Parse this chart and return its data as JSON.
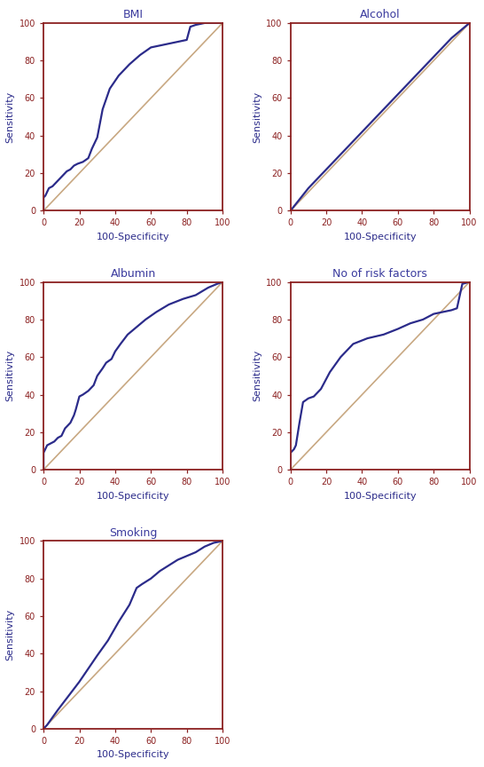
{
  "title_color": "#3b3b9e",
  "curve_color": "#2b2b8a",
  "diag_color": "#c8a882",
  "border_color": "#8b2020",
  "tick_color": "#8b2020",
  "label_color": "#2b2b8a",
  "background": "#ffffff",
  "plots": [
    {
      "title": "BMI",
      "roc_x": [
        0,
        0,
        1,
        2,
        3,
        5,
        7,
        9,
        11,
        13,
        15,
        17,
        19,
        22,
        25,
        27,
        29,
        30,
        31,
        33,
        37,
        42,
        48,
        54,
        60,
        65,
        70,
        75,
        80,
        82,
        85,
        90,
        95,
        100
      ],
      "roc_y": [
        0,
        7,
        8,
        10,
        12,
        13,
        15,
        17,
        19,
        21,
        22,
        24,
        25,
        26,
        28,
        33,
        37,
        39,
        44,
        54,
        65,
        72,
        78,
        83,
        87,
        88,
        89,
        90,
        91,
        98,
        99,
        100,
        100,
        100
      ]
    },
    {
      "title": "Alcohol",
      "roc_x": [
        0,
        5,
        10,
        20,
        30,
        40,
        50,
        60,
        70,
        80,
        90,
        100
      ],
      "roc_y": [
        0,
        6,
        12,
        22,
        32,
        42,
        52,
        62,
        72,
        82,
        92,
        100
      ]
    },
    {
      "title": "Albumin",
      "roc_x": [
        0,
        0,
        2,
        4,
        6,
        8,
        10,
        12,
        15,
        17,
        18,
        20,
        22,
        25,
        28,
        30,
        33,
        35,
        38,
        40,
        43,
        47,
        52,
        57,
        63,
        70,
        78,
        85,
        92,
        97,
        100
      ],
      "roc_y": [
        0,
        9,
        13,
        14,
        15,
        17,
        18,
        22,
        25,
        29,
        32,
        39,
        40,
        42,
        45,
        50,
        54,
        57,
        59,
        63,
        67,
        72,
        76,
        80,
        84,
        88,
        91,
        93,
        97,
        99,
        100
      ]
    },
    {
      "title": "No of risk factors",
      "roc_x": [
        0,
        0,
        1,
        2,
        3,
        5,
        7,
        10,
        13,
        17,
        22,
        28,
        35,
        43,
        52,
        60,
        67,
        74,
        80,
        85,
        90,
        93,
        96,
        100
      ],
      "roc_y": [
        0,
        9,
        10,
        11,
        13,
        25,
        36,
        38,
        39,
        43,
        52,
        60,
        67,
        70,
        72,
        75,
        78,
        80,
        83,
        84,
        85,
        86,
        99,
        100
      ]
    },
    {
      "title": "Smoking",
      "roc_x": [
        0,
        2,
        5,
        8,
        12,
        16,
        20,
        25,
        30,
        36,
        42,
        48,
        52,
        55,
        60,
        65,
        70,
        75,
        80,
        85,
        90,
        95,
        100
      ],
      "roc_y": [
        0,
        2,
        6,
        10,
        15,
        20,
        25,
        32,
        39,
        47,
        57,
        66,
        75,
        77,
        80,
        84,
        87,
        90,
        92,
        94,
        97,
        99,
        100
      ]
    }
  ]
}
